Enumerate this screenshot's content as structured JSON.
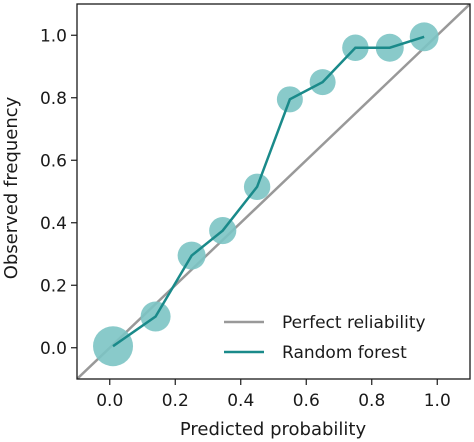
{
  "chart_data": {
    "type": "line",
    "title": "",
    "xlabel": "Predicted probability",
    "ylabel": "Observed frequency",
    "xlim": [
      -0.1,
      1.1
    ],
    "ylim": [
      -0.1,
      1.1
    ],
    "xticks": [
      0.0,
      0.2,
      0.4,
      0.6,
      0.8,
      1.0
    ],
    "yticks": [
      0.0,
      0.2,
      0.4,
      0.6,
      0.8,
      1.0
    ],
    "xtick_labels": [
      "0.0",
      "0.2",
      "0.4",
      "0.6",
      "0.8",
      "1.0"
    ],
    "ytick_labels": [
      "0.0",
      "0.2",
      "0.4",
      "0.6",
      "0.8",
      "1.0"
    ],
    "grid": false,
    "legend_position": "bottom-right",
    "series": [
      {
        "name": "Perfect reliability",
        "color": "#999999",
        "x": [
          -0.1,
          1.1
        ],
        "y": [
          -0.1,
          1.1
        ]
      },
      {
        "name": "Random forest",
        "color": "#1a8a8a",
        "marker_color": "#7cc4c4",
        "x": [
          0.01,
          0.14,
          0.25,
          0.345,
          0.45,
          0.55,
          0.65,
          0.75,
          0.855,
          0.96
        ],
        "y": [
          0.005,
          0.1,
          0.295,
          0.375,
          0.515,
          0.795,
          0.85,
          0.96,
          0.96,
          0.995
        ],
        "sizes": [
          1.0,
          0.75,
          0.7,
          0.68,
          0.66,
          0.65,
          0.65,
          0.66,
          0.7,
          0.72
        ]
      }
    ]
  }
}
